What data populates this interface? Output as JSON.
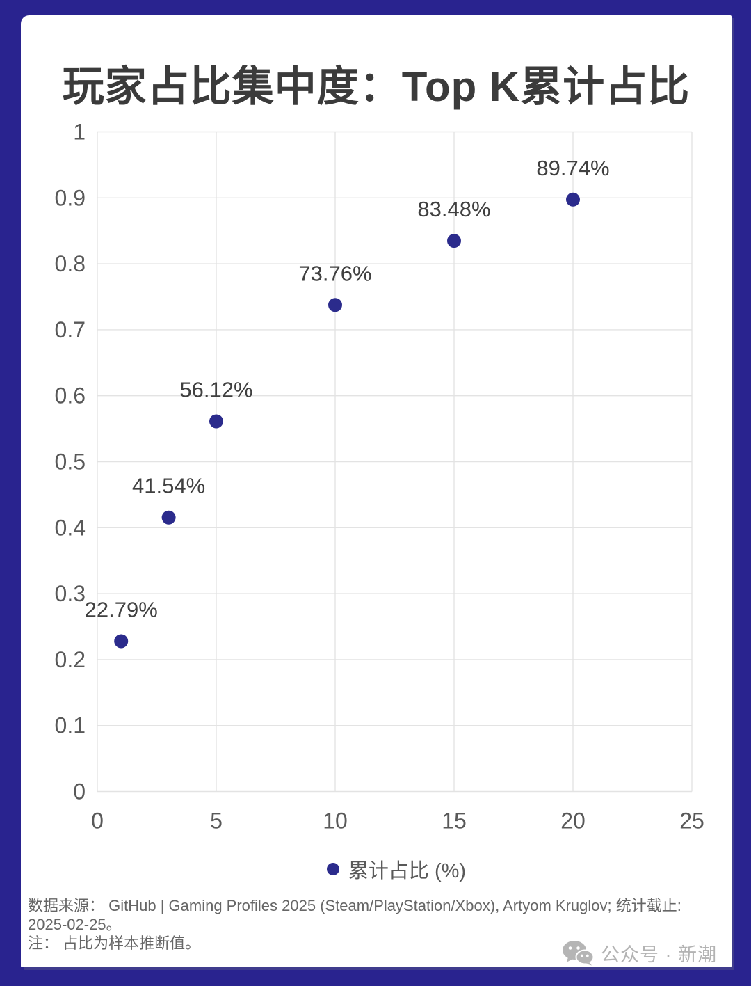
{
  "chart_data": {
    "type": "scatter",
    "title": "玩家占比集中度：Top K累计占比",
    "series": [
      {
        "name": "累计占比 (%)",
        "x": [
          1,
          3,
          5,
          10,
          15,
          20
        ],
        "y": [
          0.2279,
          0.4154,
          0.5612,
          0.7376,
          0.8348,
          0.8974
        ],
        "point_labels": [
          "22.79%",
          "41.54%",
          "56.12%",
          "73.76%",
          "83.48%",
          "89.74%"
        ]
      }
    ],
    "xlabel": "",
    "ylabel": "",
    "xlim": [
      0,
      25
    ],
    "ylim": [
      0,
      1
    ],
    "x_ticks": [
      0,
      5,
      10,
      15,
      20,
      25
    ],
    "x_tick_labels": [
      "0",
      "5",
      "10",
      "15",
      "20",
      "25"
    ],
    "y_ticks": [
      0,
      0.1,
      0.2,
      0.3,
      0.4,
      0.5,
      0.6,
      0.7,
      0.8,
      0.9,
      1
    ],
    "y_tick_labels": [
      "0",
      "0.1",
      "0.2",
      "0.3",
      "0.4",
      "0.5",
      "0.6",
      "0.7",
      "0.8",
      "0.9",
      "1"
    ],
    "grid": true,
    "legend_position": "bottom",
    "colors": {
      "marker": "#2b2b8c",
      "grid": "#e3e3e3",
      "tick_label": "#595959",
      "data_label": "#404040",
      "title": "#3b3b3b"
    }
  },
  "footer": {
    "source_line1": "数据来源： GitHub | Gaming Profiles 2025 (Steam/PlayStation/Xbox), Artyom Kruglov; 统计截止:",
    "source_line2": "2025-02-25。",
    "note": "注： 占比为样本推断值。"
  },
  "watermark": {
    "text": "公众号 · 新潮"
  },
  "frame_color": "#29238f"
}
